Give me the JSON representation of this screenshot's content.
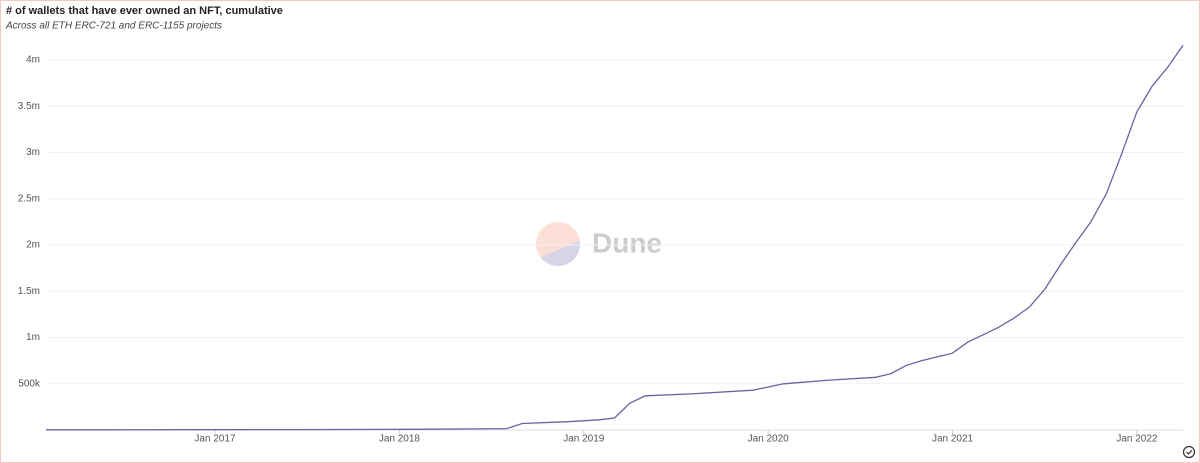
{
  "chart_data": {
    "type": "line",
    "title": "# of wallets that have ever owned an NFT, cumulative",
    "subtitle": "Across all ETH ERC-721 and ERC-1155 projects",
    "watermark": "Dune",
    "x": [
      "2016-02",
      "2016-06",
      "2016-12",
      "2017-06",
      "2017-12",
      "2018-03",
      "2018-06",
      "2018-08",
      "2018-09",
      "2018-12",
      "2019-02",
      "2019-03",
      "2019-04",
      "2019-05",
      "2019-08",
      "2019-12",
      "2020-02",
      "2020-05",
      "2020-08",
      "2020-09",
      "2020-10",
      "2020-11",
      "2020-12",
      "2021-01",
      "2021-02",
      "2021-03",
      "2021-04",
      "2021-05",
      "2021-06",
      "2021-07",
      "2021-08",
      "2021-09",
      "2021-10",
      "2021-11",
      "2021-12",
      "2022-01",
      "2022-02",
      "2022-03",
      "2022-04"
    ],
    "series": [
      {
        "color": "#6f5fa3",
        "values": [
          2000,
          2500,
          3500,
          4500,
          6000,
          9000,
          12000,
          15000,
          70000,
          90000,
          110000,
          130000,
          290000,
          370000,
          390000,
          430000,
          500000,
          540000,
          570000,
          610000,
          700000,
          750000,
          790000,
          830000,
          950000,
          1030000,
          1110000,
          1210000,
          1330000,
          1520000,
          1780000,
          2020000,
          2250000,
          2550000,
          2980000,
          3440000,
          3720000,
          3920000,
          4160000
        ]
      }
    ],
    "xlim": [
      "2016-02",
      "2022-04"
    ],
    "xticks": [
      {
        "value": "2017-01",
        "label": "Jan 2017"
      },
      {
        "value": "2018-01",
        "label": "Jan 2018"
      },
      {
        "value": "2019-01",
        "label": "Jan 2019"
      },
      {
        "value": "2020-01",
        "label": "Jan 2020"
      },
      {
        "value": "2021-01",
        "label": "Jan 2021"
      },
      {
        "value": "2022-01",
        "label": "Jan 2022"
      }
    ],
    "ylim": [
      0,
      4200000
    ],
    "yticks": [
      {
        "value": 500000,
        "label": "500k"
      },
      {
        "value": 1000000,
        "label": "1m"
      },
      {
        "value": 1500000,
        "label": "1.5m"
      },
      {
        "value": 2000000,
        "label": "2m"
      },
      {
        "value": 2500000,
        "label": "2.5m"
      },
      {
        "value": 3000000,
        "label": "3m"
      },
      {
        "value": 3500000,
        "label": "3.5m"
      },
      {
        "value": 4000000,
        "label": "4m"
      }
    ],
    "grid": true
  }
}
